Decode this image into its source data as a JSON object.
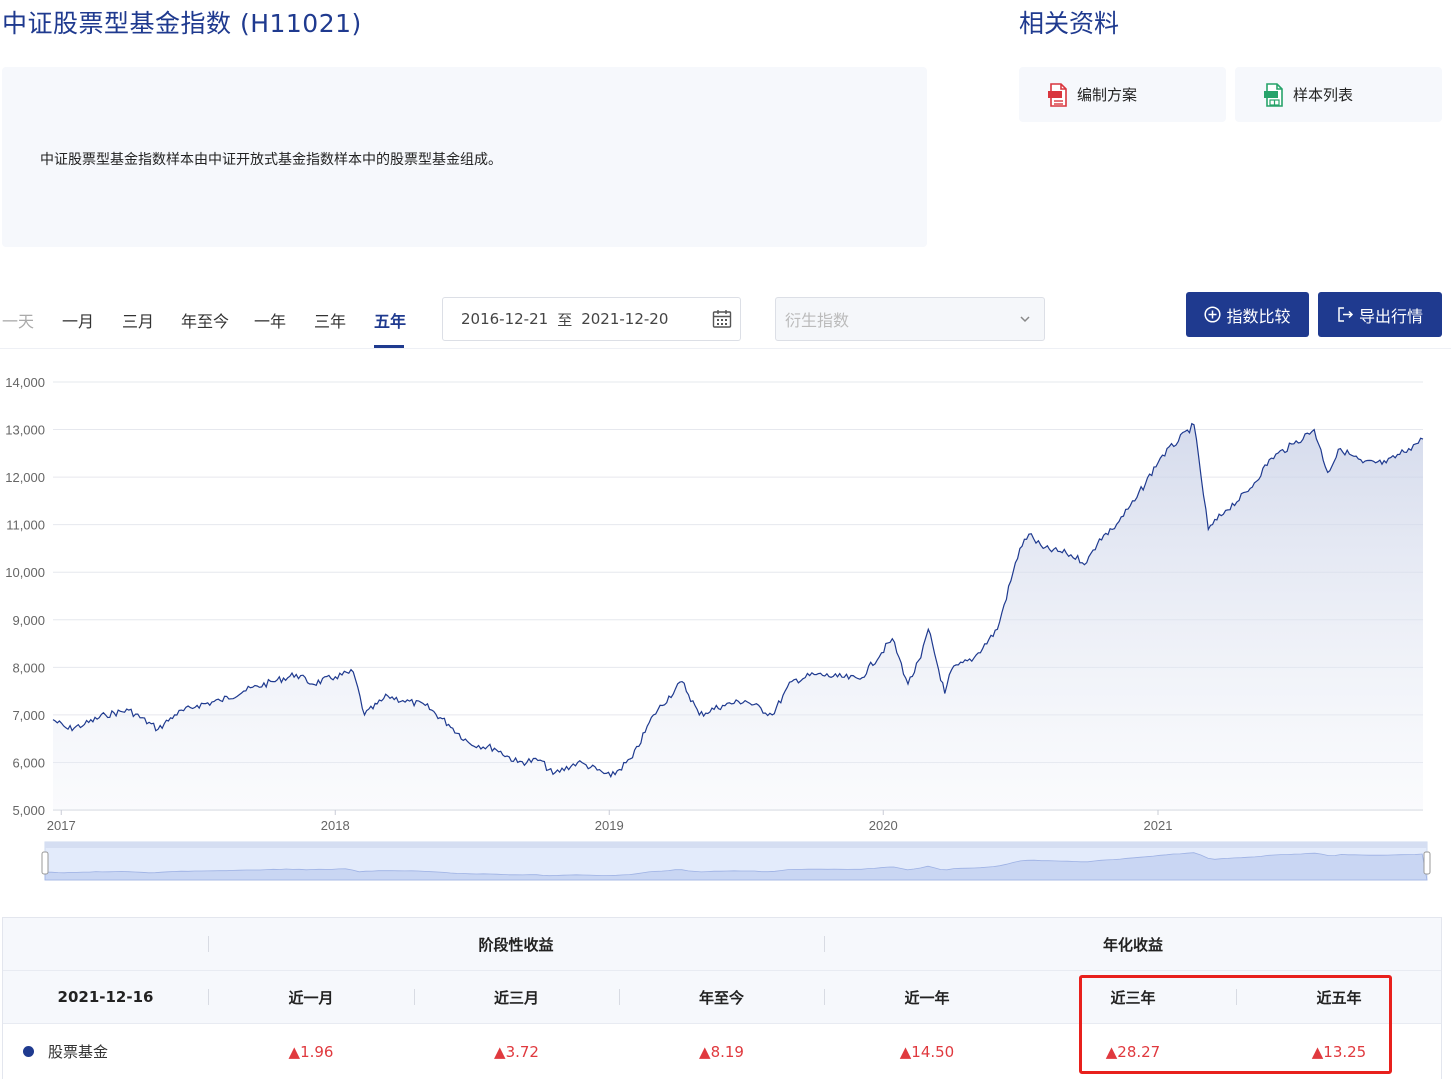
{
  "header": {
    "title": "中证股票型基金指数 (H11021)",
    "side_title": "相关资料"
  },
  "description": "中证股票型基金指数样本由中证开放式基金指数样本中的股票型基金组成。",
  "docs": [
    {
      "label": "编制方案",
      "icon": "pdf-file-icon",
      "color": "#d9363e"
    },
    {
      "label": "样本列表",
      "icon": "xls-file-icon",
      "color": "#27a36a"
    }
  ],
  "tabs": [
    {
      "label": "一天",
      "state": "disabled"
    },
    {
      "label": "一月",
      "state": "normal"
    },
    {
      "label": "三月",
      "state": "normal"
    },
    {
      "label": "年至今",
      "state": "normal"
    },
    {
      "label": "一年",
      "state": "normal"
    },
    {
      "label": "三年",
      "state": "normal"
    },
    {
      "label": "五年",
      "state": "active"
    }
  ],
  "date_range": {
    "start": "2016-12-21",
    "sep": "至",
    "end": "2021-12-20"
  },
  "derivative_select": {
    "placeholder": "衍生指数"
  },
  "actions": {
    "compare": "指数比较",
    "export": "导出行情"
  },
  "colors": {
    "brand": "#1f3a8f",
    "up": "#e0393e",
    "highlight": "#e8201c",
    "line": "#1f3a8f"
  },
  "chart_data": {
    "type": "area",
    "title": "",
    "xlabel": "",
    "ylabel": "",
    "y_ticks": [
      "14,000",
      "13,000",
      "12,000",
      "11,000",
      "10,000",
      "9,000",
      "8,000",
      "7,000",
      "6,000",
      "5,000"
    ],
    "ylim": [
      5000,
      14000
    ],
    "x_ticks": [
      "2017",
      "2018",
      "2019",
      "2020",
      "2021"
    ],
    "xlim": [
      "2016-12-21",
      "2021-12-20"
    ],
    "grid": true,
    "series": [
      {
        "x": [
          "2016-12-21",
          "2017-01-10",
          "2017-02-01",
          "2017-03-01",
          "2017-04-01",
          "2017-05-10",
          "2017-06-01",
          "2017-07-01",
          "2017-08-01",
          "2017-09-01",
          "2017-10-10",
          "2017-11-10",
          "2017-12-01",
          "2018-01-01",
          "2018-01-25",
          "2018-02-09",
          "2018-03-12",
          "2018-04-01",
          "2018-05-01",
          "2018-06-01",
          "2018-06-29",
          "2018-08-01",
          "2018-09-01",
          "2018-10-01",
          "2018-10-18",
          "2018-11-20",
          "2018-12-01",
          "2019-01-03",
          "2019-02-01",
          "2019-03-01",
          "2019-04-08",
          "2019-05-01",
          "2019-06-01",
          "2019-07-01",
          "2019-08-06",
          "2019-09-01",
          "2019-10-01",
          "2019-11-01",
          "2019-12-01",
          "2020-01-13",
          "2020-02-03",
          "2020-02-20",
          "2020-03-01",
          "2020-03-23",
          "2020-04-01",
          "2020-05-01",
          "2020-06-01",
          "2020-07-01",
          "2020-07-13",
          "2020-08-01",
          "2020-09-01",
          "2020-09-28",
          "2020-10-15",
          "2020-11-01",
          "2020-12-01",
          "2021-01-04",
          "2021-02-18",
          "2021-03-09",
          "2021-04-01",
          "2021-05-01",
          "2021-06-01",
          "2021-07-01",
          "2021-07-28",
          "2021-08-15",
          "2021-09-01",
          "2021-10-01",
          "2021-11-01",
          "2021-12-01",
          "2021-12-20"
        ],
        "values": [
          6900,
          6700,
          6800,
          7000,
          7100,
          6700,
          7000,
          7200,
          7300,
          7500,
          7700,
          7850,
          7650,
          7800,
          7900,
          7000,
          7400,
          7300,
          7200,
          6800,
          6400,
          6300,
          6000,
          6050,
          5750,
          6000,
          5950,
          5700,
          6100,
          7000,
          7700,
          7000,
          7200,
          7300,
          7000,
          7700,
          7850,
          7800,
          7750,
          8600,
          7650,
          8200,
          8800,
          7450,
          7950,
          8200,
          8800,
          10500,
          10800,
          10500,
          10400,
          10200,
          10700,
          10900,
          11500,
          12400,
          13100,
          10900,
          11300,
          11700,
          12400,
          12700,
          13000,
          12100,
          12600,
          12300,
          12300,
          12600,
          12800
        ]
      }
    ]
  },
  "table": {
    "group_headers": {
      "periodic": "阶段性收益",
      "annualized": "年化收益"
    },
    "date": "2021-12-16",
    "columns": [
      "近一月",
      "近三月",
      "年至今",
      "近一年",
      "近三年",
      "近五年"
    ],
    "fund_name": "股票基金",
    "values": [
      "▲1.96",
      "▲3.72",
      "▲8.19",
      "▲14.50",
      "▲28.27",
      "▲13.25"
    ]
  }
}
